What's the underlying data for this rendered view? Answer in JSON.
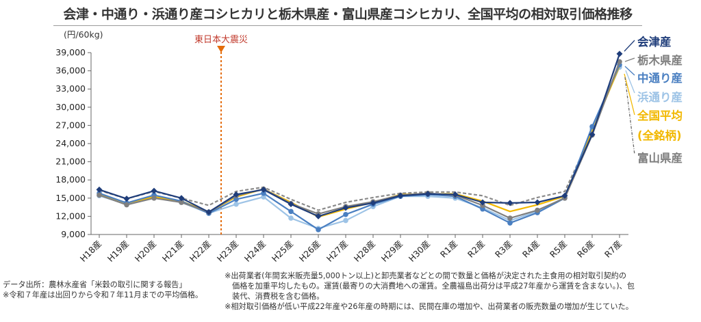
{
  "title": "会津・中通り・浜通り産コシヒカリと栃木県産・富山県産コシヒカリ、全国平均の相対取引価格推移",
  "chart_data": {
    "type": "line",
    "title": "会津・中通り・浜通り産コシヒカリと栃木県産・富山県産コシヒカリ、全国平均の相対取引価格推移",
    "ylabel": "(円/60kg)",
    "xlabel": "",
    "ylim": [
      9000,
      39000
    ],
    "yticks": [
      9000,
      12000,
      15000,
      18000,
      21000,
      24000,
      27000,
      30000,
      33000,
      36000,
      39000
    ],
    "ytick_labels": [
      "9,000",
      "12,000",
      "15,000",
      "18,000",
      "21,000",
      "24,000",
      "27,000",
      "30,000",
      "33,000",
      "36,000",
      "39,000"
    ],
    "categories": [
      "H18産",
      "H19産",
      "H20産",
      "H21産",
      "H22産",
      "H23産",
      "H24産",
      "H25産",
      "H26産",
      "H27産",
      "H28産",
      "H29産",
      "H30産",
      "R1産",
      "R2産",
      "R3産",
      "R4産",
      "R5産",
      "R6産",
      "R7産"
    ],
    "grid": false,
    "annotation": {
      "label": "東日本大震災",
      "at": "H22産-H23産",
      "color": "#e46c0a"
    },
    "series": [
      {
        "name": "会津産",
        "color": "#1f3d7a",
        "dash": false,
        "marker": "diamond",
        "values": [
          16400,
          14900,
          16200,
          15000,
          12700,
          15600,
          16400,
          14000,
          12000,
          13400,
          14200,
          15400,
          15700,
          15600,
          14300,
          14200,
          14300,
          15400,
          25500,
          38800
        ]
      },
      {
        "name": "栃木県産",
        "color": "#7f7f7f",
        "dash": false,
        "marker": "circle",
        "values": [
          15500,
          13900,
          15000,
          14300,
          12700,
          15400,
          16500,
          14100,
          12400,
          13600,
          14400,
          15500,
          15800,
          15500,
          13800,
          11700,
          13000,
          15000,
          25400,
          37500
        ]
      },
      {
        "name": "中通り産",
        "color": "#4a7fc1",
        "dash": false,
        "marker": "circle",
        "values": [
          15800,
          14200,
          15500,
          14500,
          12500,
          14800,
          15800,
          12800,
          9800,
          12300,
          14000,
          15300,
          15600,
          15300,
          13200,
          10900,
          12600,
          15000,
          26800,
          37000
        ]
      },
      {
        "name": "浜通り産",
        "color": "#9dc3e6",
        "dash": false,
        "marker": "circle",
        "values": [
          15400,
          14000,
          15200,
          14300,
          12500,
          14000,
          15200,
          11700,
          10000,
          11300,
          13600,
          15300,
          15300,
          15000,
          13400,
          11300,
          12800,
          15100,
          26400,
          36600
        ]
      },
      {
        "name": "全国平均 (全銘柄)",
        "color": "#f2b800",
        "dash": false,
        "marker": "none",
        "values": [
          15700,
          14200,
          15200,
          14500,
          12700,
          15200,
          16500,
          14300,
          11900,
          13200,
          14300,
          15600,
          15700,
          15700,
          14500,
          12800,
          13900,
          15300,
          26000,
          36800
        ]
      },
      {
        "name": "富山県産",
        "color": "#8a8a8a",
        "dash": true,
        "marker": "none",
        "values": [
          16300,
          14900,
          16100,
          15000,
          13800,
          16100,
          16800,
          14800,
          13000,
          14300,
          15100,
          15800,
          16000,
          16000,
          15400,
          13800,
          15100,
          16100,
          25800,
          37200
        ]
      }
    ]
  },
  "legend": [
    {
      "label": "会津産",
      "color": "#1f3d7a"
    },
    {
      "label": "栃木県産",
      "color": "#7f7f7f"
    },
    {
      "label": "中通り産",
      "color": "#4a7fc1"
    },
    {
      "label": "浜通り産",
      "color": "#9dc3e6"
    },
    {
      "label": "全国平均",
      "color": "#f2b800"
    },
    {
      "label": "(全銘柄)",
      "color": "#f2b800"
    },
    {
      "label": "富山県産",
      "color": "#7f7f7f"
    }
  ],
  "notes": {
    "source": "データ出所：農林水産省「米穀の取引に関する報告」",
    "period": "※令和７年産は出回りから令和７年11月までの平均価格。",
    "right_line1": "※出荷業者(年間玄米販売量5,000トン以上)と卸売業者などとの間で数量と価格が決定された主食用の相対取引契約の",
    "right_line2": "価格を加重平均したもの。運賃(最寄りの大消費地への運賃。全農福島出荷分は平成27年産から運賃を含まない。)、包",
    "right_line3": "装代、消費税を含む価格。",
    "right_line4": "※相対取引価格が低い平成22年産や26年産の時期には、民間在庫の増加や、出荷業者の販売数量の増加が生じていた。"
  }
}
